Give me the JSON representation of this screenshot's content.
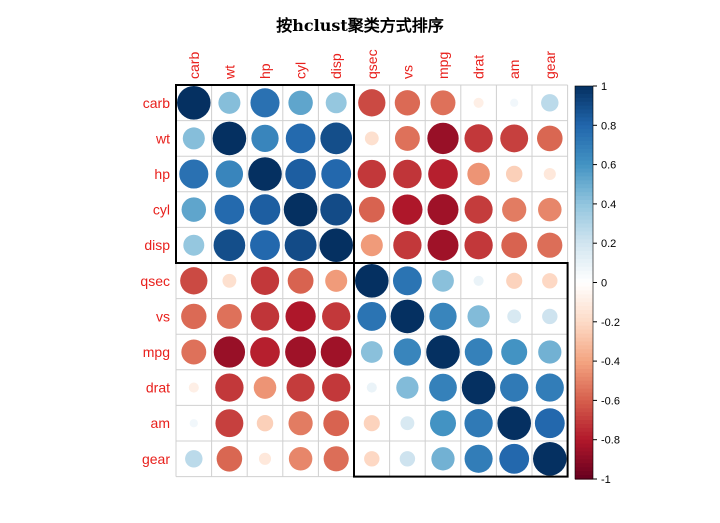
{
  "chart_data": {
    "type": "heatmap",
    "title": "按hclust聚类方式排序",
    "variables": [
      "carb",
      "wt",
      "hp",
      "cyl",
      "disp",
      "qsec",
      "vs",
      "mpg",
      "drat",
      "am",
      "gear"
    ],
    "matrix": [
      [
        1.0,
        0.43,
        0.75,
        0.53,
        0.39,
        -0.66,
        -0.57,
        -0.55,
        -0.09,
        0.06,
        0.27
      ],
      [
        0.43,
        1.0,
        0.66,
        0.78,
        0.89,
        -0.17,
        -0.55,
        -0.87,
        -0.71,
        -0.69,
        -0.58
      ],
      [
        0.75,
        0.66,
        1.0,
        0.83,
        0.79,
        -0.71,
        -0.72,
        -0.78,
        -0.45,
        -0.24,
        -0.13
      ],
      [
        0.53,
        0.78,
        0.83,
        1.0,
        0.9,
        -0.59,
        -0.81,
        -0.85,
        -0.7,
        -0.52,
        -0.49
      ],
      [
        0.39,
        0.89,
        0.79,
        0.9,
        1.0,
        -0.43,
        -0.71,
        -0.85,
        -0.71,
        -0.59,
        -0.56
      ],
      [
        -0.66,
        -0.17,
        -0.71,
        -0.59,
        -0.43,
        1.0,
        0.74,
        0.42,
        0.09,
        -0.23,
        -0.21
      ],
      [
        -0.57,
        -0.55,
        -0.72,
        -0.81,
        -0.71,
        0.74,
        1.0,
        0.66,
        0.44,
        0.17,
        0.21
      ],
      [
        -0.55,
        -0.87,
        -0.78,
        -0.85,
        -0.85,
        0.42,
        0.66,
        1.0,
        0.68,
        0.6,
        0.48
      ],
      [
        -0.09,
        -0.71,
        -0.45,
        -0.7,
        -0.71,
        0.09,
        0.44,
        0.68,
        1.0,
        0.71,
        0.7
      ],
      [
        0.06,
        -0.69,
        -0.24,
        -0.52,
        -0.59,
        -0.23,
        0.17,
        0.6,
        0.71,
        1.0,
        0.79
      ],
      [
        0.27,
        -0.58,
        -0.13,
        -0.49,
        -0.56,
        -0.21,
        0.21,
        0.48,
        0.7,
        0.79,
        1.0
      ]
    ],
    "clusters": [
      {
        "start": 0,
        "end": 4
      },
      {
        "start": 5,
        "end": 10
      }
    ],
    "legend": {
      "position": "right",
      "range": [
        -1,
        1
      ],
      "ticks": [
        "1",
        "0.8",
        "0.6",
        "0.4",
        "0.2",
        "0",
        "-0.2",
        "-0.4",
        "-0.6",
        "-0.8",
        "-1"
      ]
    },
    "colors": [
      "#67001F",
      "#B2182B",
      "#D6604D",
      "#F4A582",
      "#FDDBC7",
      "#FFFFFF",
      "#D1E5F0",
      "#92C5DE",
      "#4393C3",
      "#2166AC",
      "#053061"
    ],
    "grid": true
  }
}
